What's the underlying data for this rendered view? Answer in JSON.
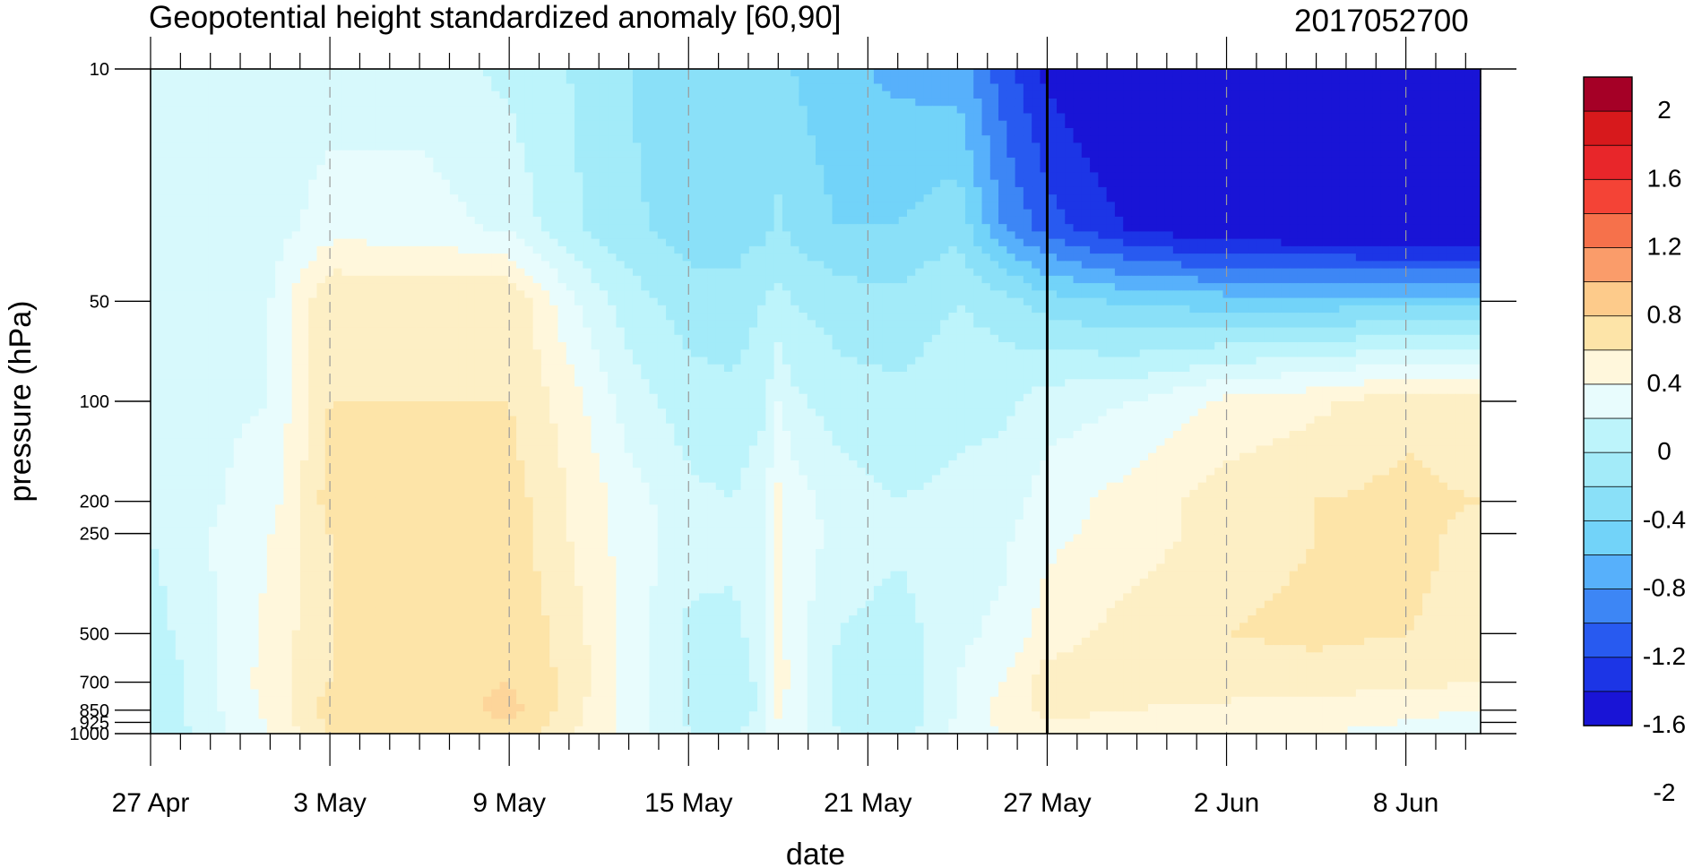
{
  "title": "Geopotential height standardized anomaly [60,90]",
  "stamp": "2017052700",
  "chart_data": {
    "type": "heatmap",
    "subtype": "filled-contour",
    "xlabel": "date",
    "ylabel": "pressure (hPa)",
    "x_ticks": [
      "27 Apr",
      "3 May",
      "9 May",
      "15 May",
      "21 May",
      "27 May",
      "2 Jun",
      "8 Jun"
    ],
    "y_axis_scale": "log",
    "y_ticks": [
      10,
      50,
      100,
      200,
      250,
      500,
      700,
      850,
      925,
      1000
    ],
    "y_tick_labels": [
      "10",
      "50",
      "100",
      "200",
      "250",
      "500",
      "700",
      "850",
      "925",
      "1000"
    ],
    "ylim": [
      1000,
      10
    ],
    "analysis_line_date": "27 May",
    "legend": {
      "position": "right",
      "labels": [
        "2",
        "1.6",
        "1.2",
        "0.8",
        "0.4",
        "0",
        "-0.4",
        "-0.8",
        "-1.2",
        "-1.6",
        "-2"
      ],
      "colors": [
        "#a50026",
        "#d7191c",
        "#e8262a",
        "#f44336",
        "#f6714b",
        "#fa9c6a",
        "#fdcb8b",
        "#fde4a8",
        "#fff7dc",
        "#e8fcfd",
        "#bdf4fb",
        "#a3ebf9",
        "#8ae0f8",
        "#72d3f9",
        "#57b0fb",
        "#3d86f5",
        "#285af0",
        "#1c35e6",
        "#1914d6"
      ]
    },
    "levels": [
      -2.2,
      -2,
      -1.8,
      -1.6,
      -1.4,
      -1.2,
      -1,
      -0.8,
      -0.6,
      -0.4,
      -0.2,
      0,
      0.2,
      0.4,
      0.6,
      0.8,
      1,
      1.2,
      1.4,
      1.6,
      1.8,
      2,
      2.2
    ],
    "days": [
      0,
      4,
      6,
      9,
      12,
      14,
      16,
      18,
      19.5,
      20.5,
      21,
      21.5,
      23,
      25,
      27,
      28.5,
      30,
      33,
      36,
      39,
      42,
      44.5
    ],
    "values": {
      "10": [
        -0.3,
        -0.3,
        -0.3,
        -0.3,
        -0.45,
        -0.6,
        -0.8,
        -1.0,
        -1.0,
        -1.0,
        -1.0,
        -1.0,
        -1.15,
        -1.25,
        -1.3,
        -1.7,
        -2.05,
        -2.4,
        -2.5,
        -2.5,
        -2.5,
        -2.5
      ],
      "30": [
        -0.3,
        -0.3,
        -0.1,
        -0.1,
        -0.25,
        -0.55,
        -0.75,
        -0.9,
        -0.9,
        -0.85,
        -0.75,
        -0.85,
        -1.0,
        -1.0,
        -0.85,
        -1.4,
        -1.7,
        -2.05,
        -2.2,
        -2.25,
        -2.3,
        -2.35
      ],
      "50": [
        -0.3,
        -0.2,
        0.4,
        0.38,
        0.4,
        -0.15,
        -0.5,
        -0.7,
        -0.72,
        -0.6,
        -0.55,
        -0.6,
        -0.7,
        -0.75,
        -0.6,
        -0.7,
        -0.9,
        -1.05,
        -1.1,
        -1.1,
        -1.1,
        -1.1
      ],
      "100": [
        -0.28,
        -0.2,
        0.4,
        0.4,
        0.4,
        0.1,
        -0.3,
        -0.5,
        -0.55,
        -0.45,
        -0.2,
        -0.35,
        -0.5,
        -0.55,
        -0.45,
        -0.45,
        -0.3,
        -0.2,
        0.05,
        0.15,
        0.35,
        0.25
      ],
      "200": [
        -0.35,
        -0.1,
        0.5,
        0.4,
        0.5,
        0.2,
        -0.1,
        -0.35,
        -0.4,
        -0.25,
        0.05,
        -0.1,
        -0.3,
        -0.4,
        -0.35,
        -0.3,
        -0.1,
        0.1,
        0.3,
        0.4,
        0.45,
        0.4
      ],
      "250": [
        -0.4,
        0.0,
        0.4,
        0.4,
        0.5,
        0.2,
        -0.1,
        -0.3,
        -0.35,
        -0.25,
        0.05,
        -0.1,
        -0.25,
        -0.35,
        -0.3,
        -0.25,
        -0.05,
        0.1,
        0.3,
        0.4,
        0.45,
        0.35
      ],
      "500": [
        -0.5,
        0.05,
        0.4,
        0.4,
        0.6,
        0.3,
        -0.05,
        -0.45,
        -0.45,
        -0.3,
        0.1,
        -0.1,
        -0.4,
        -0.5,
        -0.25,
        -0.15,
        0.1,
        0.3,
        0.4,
        0.45,
        0.4,
        0.35
      ],
      "700": [
        -0.6,
        0.1,
        0.4,
        0.45,
        0.6,
        0.35,
        -0.1,
        -0.45,
        -0.5,
        -0.35,
        0.15,
        -0.1,
        -0.45,
        -0.6,
        -0.2,
        0.0,
        0.3,
        0.25,
        0.3,
        0.3,
        0.25,
        0.2
      ],
      "850": [
        -0.55,
        0.05,
        0.5,
        0.4,
        0.7,
        0.3,
        -0.1,
        -0.45,
        -0.5,
        -0.35,
        0.05,
        -0.1,
        -0.45,
        -0.6,
        -0.2,
        0.1,
        0.25,
        0.2,
        0.15,
        0.1,
        0.05,
        0.0
      ],
      "1000": [
        -0.6,
        0.0,
        0.4,
        0.4,
        0.5,
        0.25,
        -0.1,
        -0.4,
        -0.45,
        -0.3,
        -0.05,
        -0.1,
        -0.4,
        -0.55,
        -0.1,
        0.0,
        0.1,
        0.1,
        0.05,
        0.0,
        -0.05,
        -0.2
      ]
    }
  }
}
